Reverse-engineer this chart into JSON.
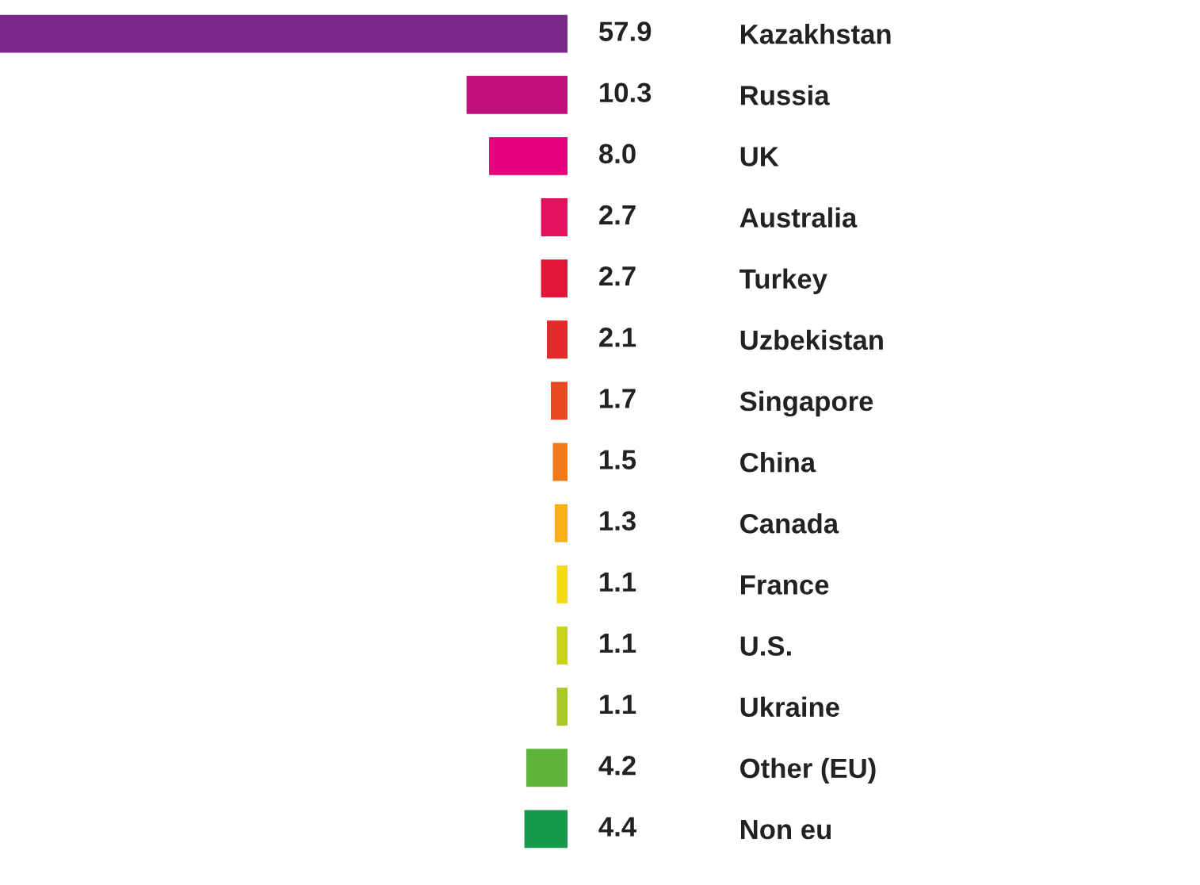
{
  "chart_data": {
    "type": "bar",
    "orientation": "horizontal",
    "categories": [
      "Kazakhstan",
      "Russia",
      "UK",
      "Australia",
      "Turkey",
      "Uzbekistan",
      "Singapore",
      "China",
      "Canada",
      "France",
      "U.S.",
      "Ukraine",
      "Other (EU)",
      "Non eu"
    ],
    "values": [
      57.9,
      10.3,
      8.0,
      2.7,
      2.7,
      2.1,
      1.7,
      1.5,
      1.3,
      1.1,
      1.1,
      1.1,
      4.2,
      4.4
    ],
    "colors": [
      "#7a2a8c",
      "#c0107f",
      "#e5007e",
      "#e6105f",
      "#e3173a",
      "#e42a2a",
      "#ea4a22",
      "#f07a1a",
      "#f8b014",
      "#f5dc10",
      "#c9d31a",
      "#a8c82a",
      "#5fb43a",
      "#16994a"
    ],
    "value_labels": [
      "57.9",
      "10.3",
      "8.0",
      "2.7",
      "2.7",
      "2.1",
      "1.7",
      "1.5",
      "1.3",
      "1.1",
      "1.1",
      "1.1",
      "4.2",
      "4.4"
    ],
    "xlim": [
      57.9,
      0
    ],
    "tick_labels": "y",
    "grid": false,
    "legend": false
  }
}
